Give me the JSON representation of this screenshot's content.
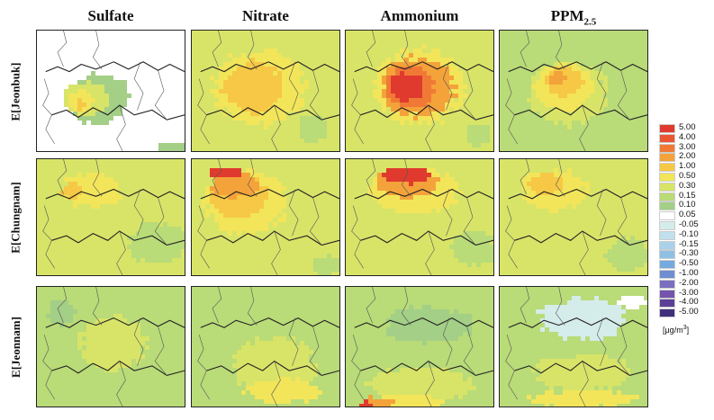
{
  "columns": [
    {
      "id": "sulfate",
      "label": "Sulfate",
      "sub": ""
    },
    {
      "id": "nitrate",
      "label": "Nitrate",
      "sub": ""
    },
    {
      "id": "ammonium",
      "label": "Ammonium",
      "sub": ""
    },
    {
      "id": "ppm",
      "label": "PPM",
      "sub": "2.5"
    }
  ],
  "rows": [
    {
      "id": "jeonbuk",
      "label": "E[Jeonbuk]"
    },
    {
      "id": "chungnam",
      "label": "E[Chungnam]"
    },
    {
      "id": "jeonnam",
      "label": "E[Jeonnam]"
    }
  ],
  "colorbar": {
    "levels": [
      "5.00",
      "4.00",
      "3.00",
      "2.00",
      "1.00",
      "0.50",
      "0.30",
      "0.15",
      "0.10",
      "0.05",
      "-0.05",
      "-0.10",
      "-0.15",
      "-0.30",
      "-0.50",
      "-1.00",
      "-2.00",
      "-3.00",
      "-4.00",
      "-5.00"
    ],
    "colors": [
      "#e03a2e",
      "#ea5532",
      "#f07a35",
      "#f4a23a",
      "#f6c845",
      "#f2e55a",
      "#d8e468",
      "#b9db78",
      "#a3cf86",
      "#ffffff",
      "#d4ecea",
      "#bfe0ec",
      "#a9d2ea",
      "#8fc0e4",
      "#74aadd",
      "#6f8ed0",
      "#7a6fbf",
      "#7454ac",
      "#5c3e97",
      "#40307c"
    ],
    "unit": "[μg/m",
    "unit_sup": "3",
    "unit_close": "]"
  },
  "scheme": {
    "jeonbuk": {
      "sulfate": {
        "base": "#ffffff",
        "blobs": [
          [
            0.4,
            0.55,
            0.42,
            0.4,
            "#a3cf86"
          ],
          [
            0.32,
            0.55,
            0.3,
            0.28,
            "#d8e468"
          ],
          [
            0.28,
            0.58,
            0.18,
            0.18,
            "#f2e55a"
          ],
          [
            0.28,
            0.6,
            0.07,
            0.08,
            "#f6c845"
          ],
          [
            0.9,
            0.95,
            0.18,
            0.1,
            "#a3cf86"
          ]
        ]
      },
      "nitrate": {
        "base": "#d8e468",
        "blobs": [
          [
            0.45,
            0.45,
            0.62,
            0.62,
            "#f2e55a"
          ],
          [
            0.4,
            0.45,
            0.42,
            0.42,
            "#f6c845"
          ],
          [
            0.8,
            0.8,
            0.2,
            0.22,
            "#b9db78"
          ]
        ]
      },
      "ammonium": {
        "base": "#d8e468",
        "blobs": [
          [
            0.48,
            0.45,
            0.62,
            0.62,
            "#f2e55a"
          ],
          [
            0.47,
            0.45,
            0.5,
            0.48,
            "#f4a23a"
          ],
          [
            0.42,
            0.45,
            0.32,
            0.36,
            "#f07a35"
          ],
          [
            0.4,
            0.45,
            0.22,
            0.24,
            "#e03a2e"
          ],
          [
            0.88,
            0.85,
            0.16,
            0.2,
            "#b9db78"
          ]
        ]
      },
      "ppm": {
        "base": "#b9db78",
        "blobs": [
          [
            0.45,
            0.5,
            0.55,
            0.52,
            "#d8e468"
          ],
          [
            0.42,
            0.45,
            0.4,
            0.38,
            "#f2e55a"
          ],
          [
            0.42,
            0.4,
            0.26,
            0.24,
            "#f6c845"
          ],
          [
            0.38,
            0.38,
            0.12,
            0.1,
            "#f4a23a"
          ]
        ]
      }
    },
    "chungnam": {
      "sulfate": {
        "base": "#d8e468",
        "blobs": [
          [
            0.35,
            0.25,
            0.4,
            0.3,
            "#f2e55a"
          ],
          [
            0.22,
            0.25,
            0.14,
            0.14,
            "#f6c845"
          ],
          [
            0.8,
            0.7,
            0.4,
            0.35,
            "#b9db78"
          ]
        ]
      },
      "nitrate": {
        "base": "#d8e468",
        "blobs": [
          [
            0.35,
            0.35,
            0.55,
            0.55,
            "#f2e55a"
          ],
          [
            0.3,
            0.3,
            0.4,
            0.38,
            "#f6c845"
          ],
          [
            0.28,
            0.2,
            0.3,
            0.22,
            "#f4a23a"
          ],
          [
            0.22,
            0.1,
            0.22,
            0.08,
            "#e03a2e"
          ],
          [
            0.9,
            0.9,
            0.2,
            0.16,
            "#b9db78"
          ]
        ]
      },
      "ammonium": {
        "base": "#d8e468",
        "blobs": [
          [
            0.45,
            0.25,
            0.6,
            0.4,
            "#f2e55a"
          ],
          [
            0.4,
            0.18,
            0.44,
            0.26,
            "#f4a23a"
          ],
          [
            0.4,
            0.12,
            0.32,
            0.14,
            "#e03a2e"
          ],
          [
            0.85,
            0.75,
            0.3,
            0.3,
            "#b9db78"
          ]
        ]
      },
      "ppm": {
        "base": "#d8e468",
        "blobs": [
          [
            0.35,
            0.25,
            0.45,
            0.35,
            "#f2e55a"
          ],
          [
            0.3,
            0.2,
            0.24,
            0.18,
            "#f6c845"
          ],
          [
            0.85,
            0.8,
            0.3,
            0.28,
            "#b9db78"
          ]
        ]
      }
    },
    "jeonnam": {
      "sulfate": {
        "base": "#b9db78",
        "blobs": [
          [
            0.5,
            0.45,
            0.45,
            0.45,
            "#d8e468"
          ],
          [
            0.15,
            0.2,
            0.18,
            0.2,
            "#a3cf86"
          ]
        ]
      },
      "nitrate": {
        "base": "#b9db78",
        "blobs": [
          [
            0.55,
            0.65,
            0.55,
            0.5,
            "#d8e468"
          ],
          [
            0.6,
            0.85,
            0.5,
            0.2,
            "#f2e55a"
          ]
        ]
      },
      "ammonium": {
        "base": "#b9db78",
        "blobs": [
          [
            0.55,
            0.3,
            0.6,
            0.3,
            "#a3cf86"
          ],
          [
            0.5,
            0.8,
            0.7,
            0.3,
            "#d8e468"
          ],
          [
            0.4,
            0.95,
            0.55,
            0.15,
            "#f2e55a"
          ],
          [
            0.2,
            0.95,
            0.22,
            0.1,
            "#f4a23a"
          ],
          [
            0.12,
            0.97,
            0.1,
            0.06,
            "#e03a2e"
          ]
        ]
      },
      "ppm": {
        "base": "#b9db78",
        "blobs": [
          [
            0.55,
            0.25,
            0.6,
            0.35,
            "#d4ecea"
          ],
          [
            0.88,
            0.1,
            0.2,
            0.12,
            "#ffffff"
          ],
          [
            0.55,
            0.7,
            0.65,
            0.3,
            "#d8e468"
          ],
          [
            0.55,
            0.92,
            0.7,
            0.14,
            "#f2e55a"
          ]
        ]
      }
    }
  }
}
